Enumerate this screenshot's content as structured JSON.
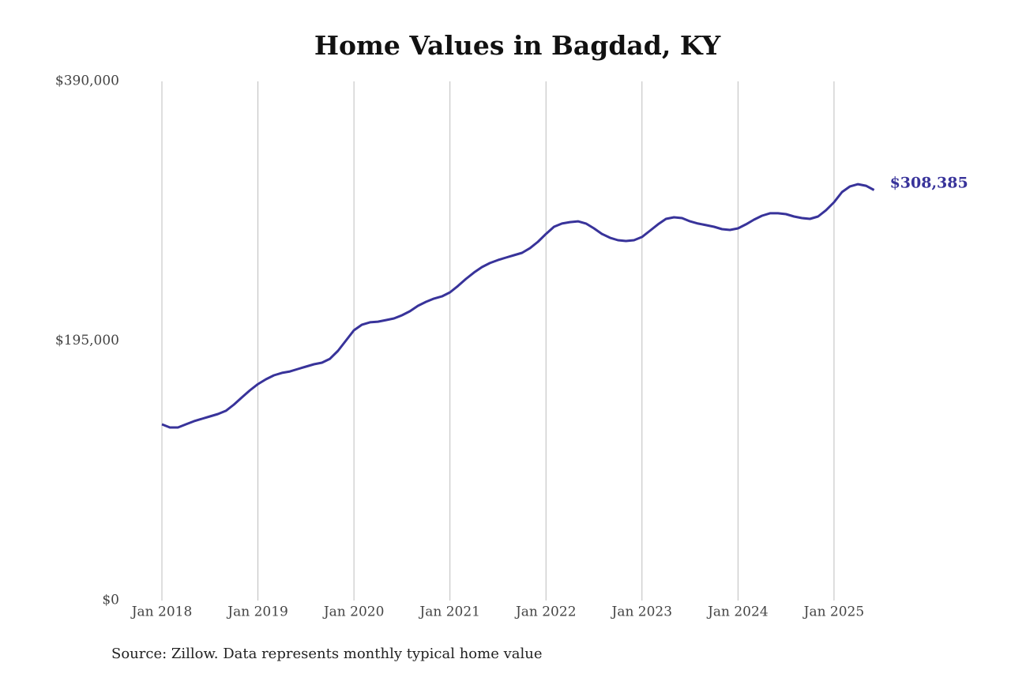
{
  "chart_data": {
    "type": "line",
    "title": "Home Values in Bagdad, KY",
    "source": "Source: Zillow. Data represents monthly typical home value",
    "x": [
      "2018-01",
      "2018-02",
      "2018-03",
      "2018-04",
      "2018-05",
      "2018-06",
      "2018-07",
      "2018-08",
      "2018-09",
      "2018-10",
      "2018-11",
      "2018-12",
      "2019-01",
      "2019-02",
      "2019-03",
      "2019-04",
      "2019-05",
      "2019-06",
      "2019-07",
      "2019-08",
      "2019-09",
      "2019-10",
      "2019-11",
      "2019-12",
      "2020-01",
      "2020-02",
      "2020-03",
      "2020-04",
      "2020-05",
      "2020-06",
      "2020-07",
      "2020-08",
      "2020-09",
      "2020-10",
      "2020-11",
      "2020-12",
      "2021-01",
      "2021-02",
      "2021-03",
      "2021-04",
      "2021-05",
      "2021-06",
      "2021-07",
      "2021-08",
      "2021-09",
      "2021-10",
      "2021-11",
      "2021-12",
      "2022-01",
      "2022-02",
      "2022-03",
      "2022-04",
      "2022-05",
      "2022-06",
      "2022-07",
      "2022-08",
      "2022-09",
      "2022-10",
      "2022-11",
      "2022-12",
      "2023-01",
      "2023-02",
      "2023-03",
      "2023-04",
      "2023-05",
      "2023-06",
      "2023-07",
      "2023-08",
      "2023-09",
      "2023-10",
      "2023-11",
      "2023-12",
      "2024-01",
      "2024-02",
      "2024-03",
      "2024-04",
      "2024-05",
      "2024-06",
      "2024-07",
      "2024-08",
      "2024-09",
      "2024-10",
      "2024-11",
      "2024-12",
      "2025-01",
      "2025-02",
      "2025-03",
      "2025-04",
      "2025-05",
      "2025-06"
    ],
    "series": [
      {
        "name": "Typical home value",
        "color": "#38339a",
        "values": [
          132400,
          130000,
          130000,
          132400,
          134700,
          136500,
          138300,
          140100,
          142500,
          147200,
          152600,
          157900,
          162600,
          166200,
          169200,
          171000,
          172100,
          173900,
          175700,
          177500,
          178700,
          181600,
          187600,
          195300,
          203000,
          207200,
          209000,
          209500,
          210700,
          211900,
          214300,
          217300,
          221400,
          224400,
          226800,
          228500,
          231500,
          236300,
          241600,
          246400,
          250500,
          253500,
          255800,
          257600,
          259400,
          261200,
          264700,
          269500,
          275400,
          280800,
          283200,
          284300,
          284900,
          283200,
          279600,
          275400,
          272500,
          270700,
          270100,
          270700,
          273100,
          277800,
          282600,
          286700,
          287900,
          287300,
          284900,
          283200,
          282000,
          280800,
          279000,
          278400,
          279600,
          282600,
          286100,
          289100,
          290900,
          290900,
          290300,
          288500,
          287300,
          286700,
          288500,
          293200,
          299200,
          306900,
          311100,
          312800,
          311600,
          308385
        ],
        "value_labels": [
          null,
          null,
          null,
          null,
          null,
          null,
          null,
          null,
          null,
          null,
          null,
          null,
          null,
          null,
          null,
          null,
          null,
          null,
          null,
          null,
          null,
          null,
          null,
          null,
          null,
          null,
          null,
          null,
          null,
          null,
          null,
          null,
          null,
          null,
          null,
          null,
          null,
          null,
          null,
          null,
          null,
          null,
          null,
          null,
          null,
          null,
          null,
          null,
          null,
          null,
          null,
          null,
          null,
          null,
          null,
          null,
          null,
          null,
          null,
          null,
          null,
          null,
          null,
          null,
          null,
          null,
          null,
          null,
          null,
          null,
          null,
          null,
          null,
          null,
          null,
          null,
          null,
          null,
          null,
          null,
          null,
          null,
          null,
          null,
          null,
          null,
          null,
          null,
          null,
          "$308,385"
        ]
      }
    ],
    "xticks": [
      {
        "value": "2018-01",
        "label": "Jan 2018"
      },
      {
        "value": "2019-01",
        "label": "Jan 2019"
      },
      {
        "value": "2020-01",
        "label": "Jan 2020"
      },
      {
        "value": "2021-01",
        "label": "Jan 2021"
      },
      {
        "value": "2022-01",
        "label": "Jan 2022"
      },
      {
        "value": "2023-01",
        "label": "Jan 2023"
      },
      {
        "value": "2024-01",
        "label": "Jan 2024"
      },
      {
        "value": "2025-01",
        "label": "Jan 2025"
      }
    ],
    "ylim": [
      0,
      390000
    ],
    "yticks": [
      {
        "value": 0,
        "label": "$0"
      },
      {
        "value": 195000,
        "label": "$195,000"
      },
      {
        "value": 390000,
        "label": "$390,000"
      }
    ],
    "grid": "x"
  }
}
